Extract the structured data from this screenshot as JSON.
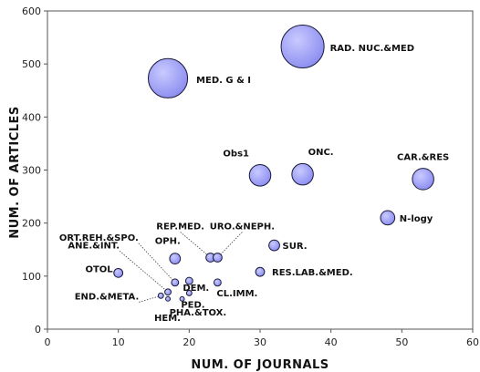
{
  "chart_data": {
    "type": "scatter",
    "subtype": "bubble",
    "title": "",
    "xlabel": "NUM. OF JOURNALS",
    "ylabel": "NUM. OF ARTICLES",
    "xlim": [
      0,
      60
    ],
    "ylim": [
      0,
      600
    ],
    "xticks": [
      0,
      10,
      20,
      30,
      40,
      50,
      60
    ],
    "yticks": [
      0,
      100,
      200,
      300,
      400,
      500,
      600
    ],
    "grid": false,
    "legend": "none",
    "colors": {
      "bubble_fill": "#8a8cf0",
      "bubble_highlight": "#c9caff",
      "bubble_stroke": "#1a1a3a",
      "leader": "#444444"
    },
    "points": [
      {
        "label": "RAD. NUC.&MED",
        "x": 36,
        "y": 533,
        "size": 24
      },
      {
        "label": "MED. G & I",
        "x": 17,
        "y": 473,
        "size": 22
      },
      {
        "label": "Obs1",
        "x": 30,
        "y": 290,
        "size": 12
      },
      {
        "label": "ONC.",
        "x": 36,
        "y": 292,
        "size": 12
      },
      {
        "label": "CAR.&RES",
        "x": 53,
        "y": 283,
        "size": 12
      },
      {
        "label": "N-logy",
        "x": 48,
        "y": 210,
        "size": 8
      },
      {
        "label": "SUR.",
        "x": 32,
        "y": 158,
        "size": 6
      },
      {
        "label": "REP.MED.",
        "x": 23,
        "y": 135,
        "size": 5
      },
      {
        "label": "URO.&NEPH.",
        "x": 24,
        "y": 135,
        "size": 5
      },
      {
        "label": "OPH.",
        "x": 18,
        "y": 133,
        "size": 6
      },
      {
        "label": "RES.LAB.&MED.",
        "x": 30,
        "y": 108,
        "size": 5
      },
      {
        "label": "OTOL",
        "x": 10,
        "y": 106,
        "size": 5
      },
      {
        "label": "DEM.",
        "x": 20,
        "y": 91,
        "size": 4
      },
      {
        "label": "ORT.REH.&SPO.",
        "x": 18,
        "y": 88,
        "size": 4
      },
      {
        "label": "CL.IMM.",
        "x": 24,
        "y": 88,
        "size": 4
      },
      {
        "label": "ANE.&INT.",
        "x": 17,
        "y": 70,
        "size": 3.5
      },
      {
        "label": "PED.",
        "x": 20,
        "y": 68,
        "size": 3
      },
      {
        "label": "END.&META.",
        "x": 16,
        "y": 63,
        "size": 3
      },
      {
        "label": "HEM.",
        "x": 17,
        "y": 57,
        "size": 2.5
      },
      {
        "label": "PHA.&TOX.",
        "x": 19,
        "y": 57,
        "size": 2.5
      }
    ]
  }
}
